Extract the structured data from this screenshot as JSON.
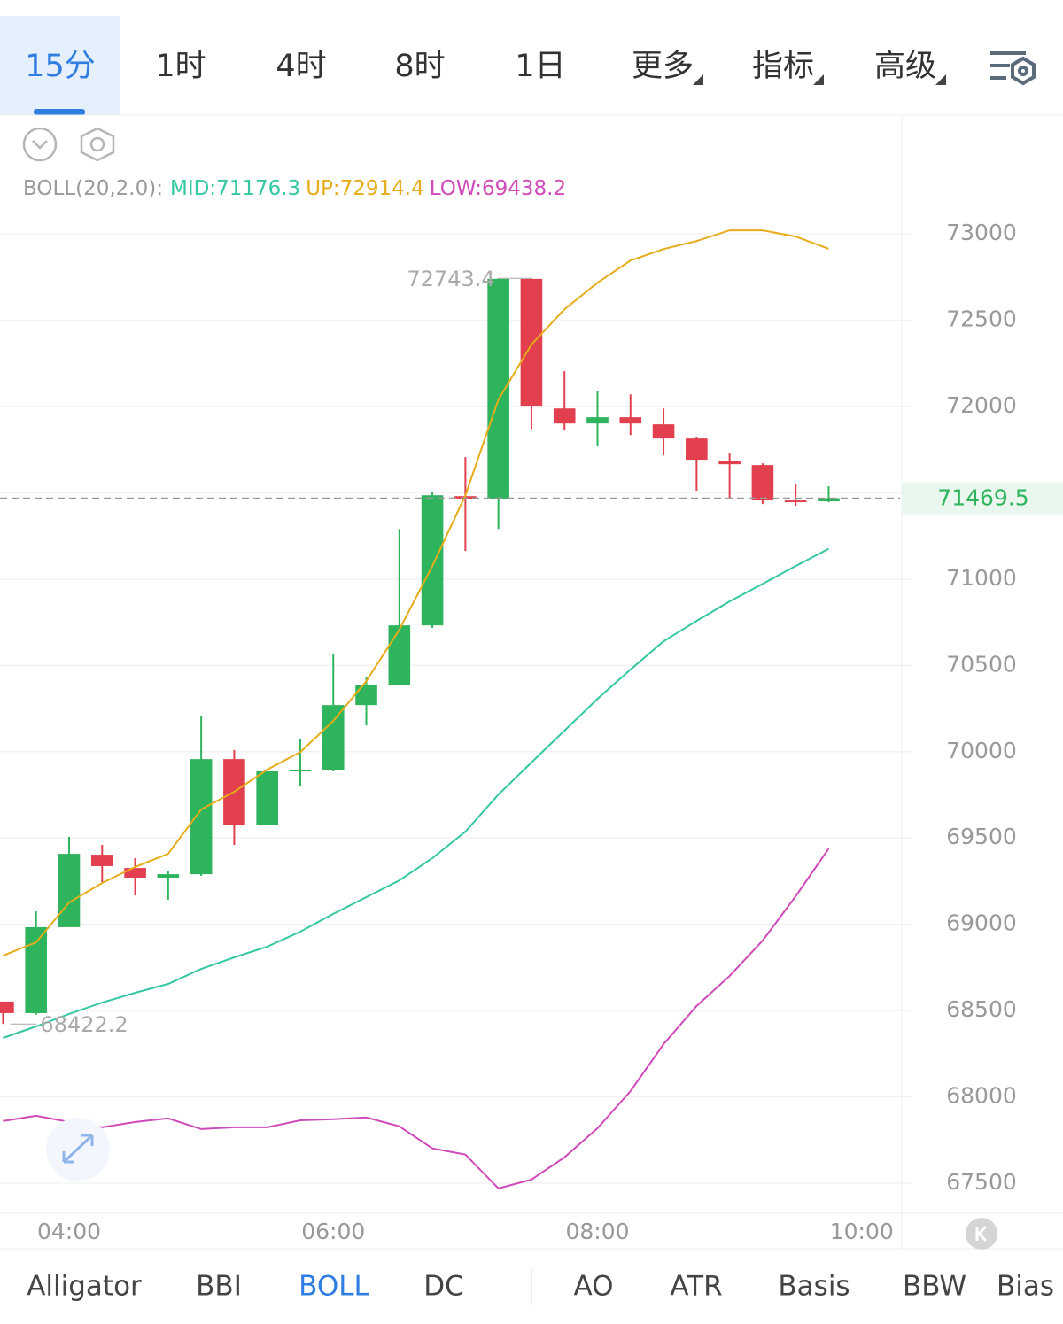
{
  "tabs": [
    "15分",
    "1时",
    "4时",
    "8时",
    "1日",
    "更多",
    "指标",
    "高级"
  ],
  "indicator_tabs": [
    "Alligator",
    "BBI",
    "BOLL",
    "DC",
    "AO",
    "ATR",
    "Basis",
    "BBW",
    "Bias"
  ],
  "chart_data": {
    "type": "candlestick",
    "indicator_label": "BOLL(20,2.0):",
    "x": [
      3.5,
      3.75,
      4,
      4.25,
      4.5,
      4.75,
      5,
      5.25,
      5.5,
      5.75,
      6,
      6.25,
      6.5,
      6.75,
      7,
      7.25,
      7.5,
      7.75,
      8,
      8.25,
      8.5,
      8.75,
      9,
      9.25,
      9.5,
      9.75
    ],
    "open": [
      68552,
      68485,
      68983,
      69403,
      69326,
      69270,
      69290,
      69957,
      69573,
      69886,
      69896,
      70270,
      70388,
      70732,
      71481,
      71466,
      72740,
      71989,
      71902,
      71938,
      71897,
      71815,
      71687,
      71661,
      71456,
      71451
    ],
    "high": [
      68552,
      69075,
      69506,
      69460,
      69383,
      69306,
      70204,
      70009,
      69886,
      70075,
      70563,
      70435,
      71291,
      71507,
      71707,
      72743.4,
      72743,
      72205,
      72092,
      72071,
      71989,
      71825,
      71733,
      71671,
      71553,
      71538
    ],
    "low": [
      68422.2,
      68475,
      68983,
      69244,
      69167,
      69142,
      69280,
      69460,
      69573,
      69803,
      69886,
      70152,
      70383,
      70717,
      71163,
      71291,
      71871,
      71861,
      71769,
      71835,
      71717,
      71512,
      71471,
      71435,
      71425,
      71446
    ],
    "close": [
      68485,
      68983,
      69408,
      69337,
      69270,
      69290,
      69957,
      69573,
      69886,
      69896,
      70270,
      70388,
      70732,
      71486,
      71466,
      72740,
      72000,
      71902,
      71938,
      71902,
      71815,
      71692,
      71666,
      71456,
      71451,
      71469.5
    ],
    "up_color": "#2eb45c",
    "down_color": "#e2404e",
    "series": [
      {
        "name": "MID:",
        "color": "#35c7a4",
        "values": [
          68341,
          68408,
          68480,
          68546,
          68603,
          68654,
          68741,
          68808,
          68870,
          68957,
          69060,
          69157,
          69254,
          69383,
          69537,
          69752,
          69937,
          70122,
          70306,
          70476,
          70640,
          70758,
          70871,
          70973,
          71076,
          71176.3
        ]
      },
      {
        "name": "UP:",
        "color": "#e6ac1a",
        "values": [
          68818,
          68895,
          69126,
          69239,
          69332,
          69408,
          69665,
          69768,
          69896,
          69998,
          70178,
          70409,
          70707,
          71076,
          71486,
          72041,
          72359,
          72564,
          72718,
          72846,
          72913,
          72959,
          73021,
          73021,
          72985,
          72914.4
        ]
      },
      {
        "name": "LOW:",
        "color": "#cf4bb9",
        "values": [
          67859,
          67890,
          67854,
          67823,
          67854,
          67875,
          67813,
          67823,
          67823,
          67864,
          67870,
          67880,
          67829,
          67701,
          67665,
          67469,
          67520,
          67649,
          67818,
          68033,
          68305,
          68526,
          68700,
          68905,
          69162,
          69438.2
        ]
      }
    ],
    "xlim": [
      3.477,
      10.29
    ],
    "xticks": [
      {
        "value": 4,
        "label": "04:00"
      },
      {
        "value": 6,
        "label": "06:00"
      },
      {
        "value": 8,
        "label": "08:00"
      },
      {
        "value": 10,
        "label": "10:00"
      }
    ],
    "ylim": [
      67330,
      73150
    ],
    "yticks": [
      67500,
      68000,
      68500,
      69000,
      69500,
      70000,
      70500,
      71000,
      71500,
      72000,
      72500,
      73000
    ],
    "grid": true
  }
}
